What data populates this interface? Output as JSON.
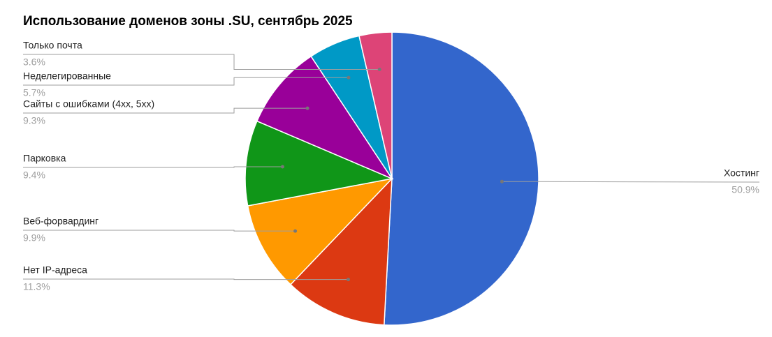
{
  "chart_data": {
    "type": "pie",
    "title": "Использование доменов зоны .SU, сентябрь 2025",
    "categories": [
      "Хостинг",
      "Нет IP-адреса",
      "Веб-форвардинг",
      "Парковка",
      "Сайты с ошибками (4xx, 5xx)",
      "Неделегированные",
      "Только почта"
    ],
    "values": [
      50.9,
      11.3,
      9.9,
      9.4,
      9.3,
      5.7,
      3.6
    ],
    "value_labels": [
      "50.9%",
      "11.3%",
      "9.9%",
      "9.4%",
      "9.3%",
      "5.7%",
      "3.6%"
    ],
    "colors": [
      "#3366cc",
      "#dc3912",
      "#ff9900",
      "#109618",
      "#990099",
      "#0099c6",
      "#dd4477"
    ]
  }
}
